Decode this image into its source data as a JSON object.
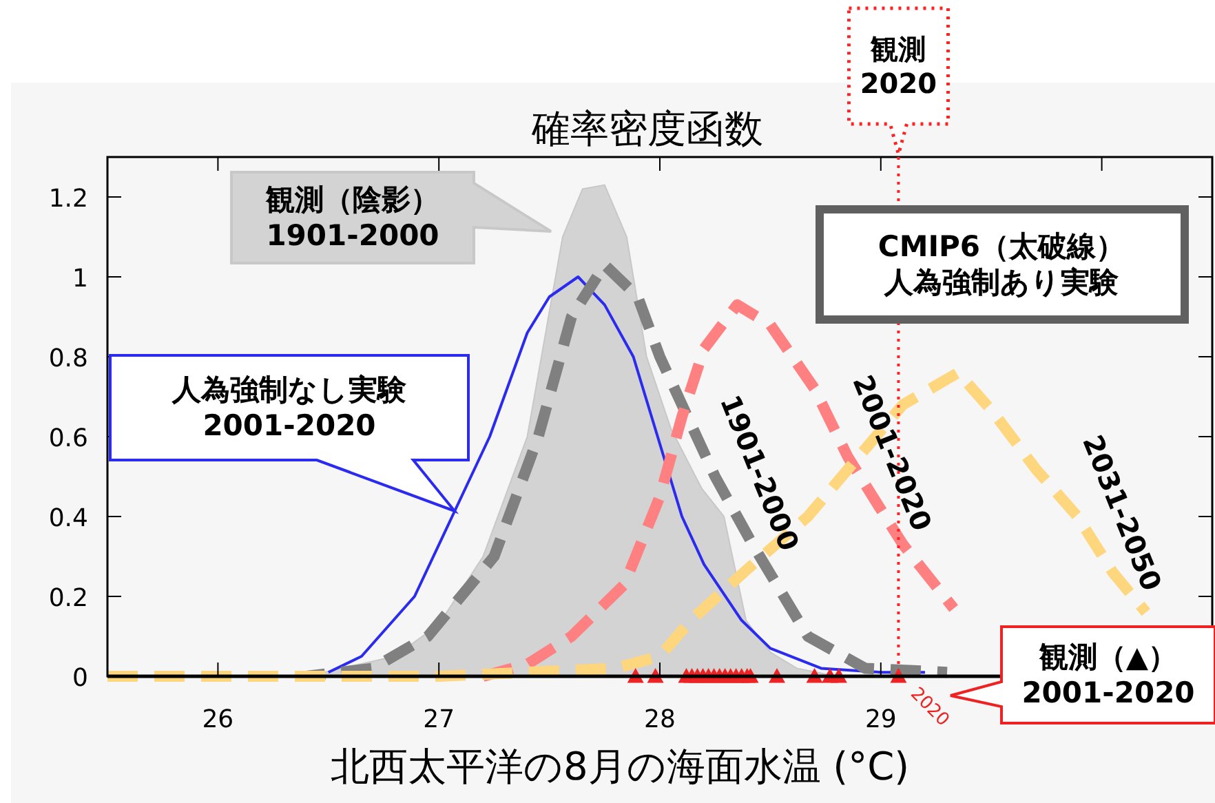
{
  "chart_data": {
    "type": "line",
    "title": "確率密度函数",
    "xlabel": "北西太平洋の8月の海面水温 (°C)",
    "xlim": [
      25.5,
      30.5
    ],
    "ylim": [
      0,
      1.3
    ],
    "xticks": [
      26,
      27,
      28,
      29,
      {
        "value": 30,
        "label": null
      }
    ],
    "yticks": [
      0,
      0.2,
      0.4,
      0.6,
      0.8,
      1,
      1.2
    ],
    "series": [
      {
        "type": "area",
        "name": "観測（陰影）\n1901-2000",
        "color": "#d3d3d3",
        "x": [
          26.4,
          26.8,
          27.0,
          27.2,
          27.4,
          27.56,
          27.65,
          27.75,
          27.85,
          27.94,
          28.05,
          28.19,
          28.29,
          28.39,
          28.5,
          28.62,
          28.8
        ],
        "values": [
          0,
          0.05,
          0.13,
          0.3,
          0.6,
          1.1,
          1.22,
          1.23,
          1.1,
          0.8,
          0.62,
          0.47,
          0.4,
          0.14,
          0.06,
          0.02,
          0
        ]
      },
      {
        "type": "line",
        "name": "人為強制なし実験\n2001-2020",
        "color": "#2b2bf0",
        "line_style": "solid",
        "x": [
          26.5,
          26.65,
          26.89,
          27.06,
          27.23,
          27.4,
          27.5,
          27.63,
          27.75,
          27.88,
          28.1,
          28.2,
          28.37,
          28.5,
          28.73,
          29.0,
          29.2
        ],
        "values": [
          0.01,
          0.05,
          0.2,
          0.4,
          0.6,
          0.86,
          0.95,
          1.0,
          0.93,
          0.8,
          0.4,
          0.28,
          0.14,
          0.07,
          0.02,
          0.01,
          0.01
        ]
      },
      {
        "type": "line",
        "name": "1901-2000",
        "color": "#808080",
        "line_style": "dashed",
        "x": [
          25.5,
          26.4,
          26.7,
          26.95,
          27.25,
          27.45,
          27.6,
          27.75,
          27.9,
          28.0,
          28.25,
          28.42,
          28.67,
          28.93,
          29.3
        ],
        "values": [
          0,
          0,
          0.02,
          0.1,
          0.3,
          0.6,
          0.9,
          1.03,
          0.95,
          0.8,
          0.5,
          0.33,
          0.1,
          0.02,
          0.01
        ]
      },
      {
        "type": "line",
        "name": "2001-2020",
        "color": "#ff8080",
        "line_style": "dashed",
        "x": [
          27.2,
          27.4,
          27.6,
          27.84,
          28.0,
          28.1,
          28.2,
          28.35,
          28.5,
          28.7,
          28.85,
          29.02,
          29.1,
          29.33
        ],
        "values": [
          0,
          0.03,
          0.1,
          0.23,
          0.45,
          0.65,
          0.82,
          0.93,
          0.88,
          0.72,
          0.55,
          0.4,
          0.33,
          0.17
        ]
      },
      {
        "type": "line",
        "name": "2031-2050",
        "color": "#fdd67e",
        "line_style": "dashed",
        "x": [
          25.5,
          27.0,
          27.8,
          28.0,
          28.14,
          28.4,
          28.67,
          28.9,
          29.1,
          29.35,
          29.51,
          29.7,
          29.89,
          30.05,
          30.2
        ],
        "values": [
          0,
          0,
          0.02,
          0.05,
          0.14,
          0.27,
          0.4,
          0.55,
          0.68,
          0.76,
          0.66,
          0.52,
          0.4,
          0.26,
          0.16
        ]
      },
      {
        "type": "scatter",
        "name": "観測（▲）\n2001-2020",
        "color": "#ee2222",
        "marker": "triangle",
        "x": [
          27.89,
          27.98,
          28.12,
          28.145,
          28.17,
          28.195,
          28.22,
          28.245,
          28.27,
          28.295,
          28.32,
          28.345,
          28.37,
          28.395,
          28.41,
          28.53,
          28.7,
          28.77,
          28.81,
          29.08
        ],
        "values": [
          0,
          0,
          0,
          0,
          0,
          0,
          0,
          0,
          0,
          0,
          0,
          0,
          0,
          0,
          0,
          0,
          0,
          0,
          0,
          0
        ]
      }
    ],
    "ref_lines": [
      {
        "axis": "x",
        "value": 29.08,
        "label": "観測\n2020",
        "color": "#ff2222",
        "line_style": "dotted"
      }
    ],
    "annotations": [
      "CMIP6（太破線）人為強制あり実験",
      {
        "text": "2020",
        "x": 29.08,
        "y": 0
      }
    ]
  }
}
